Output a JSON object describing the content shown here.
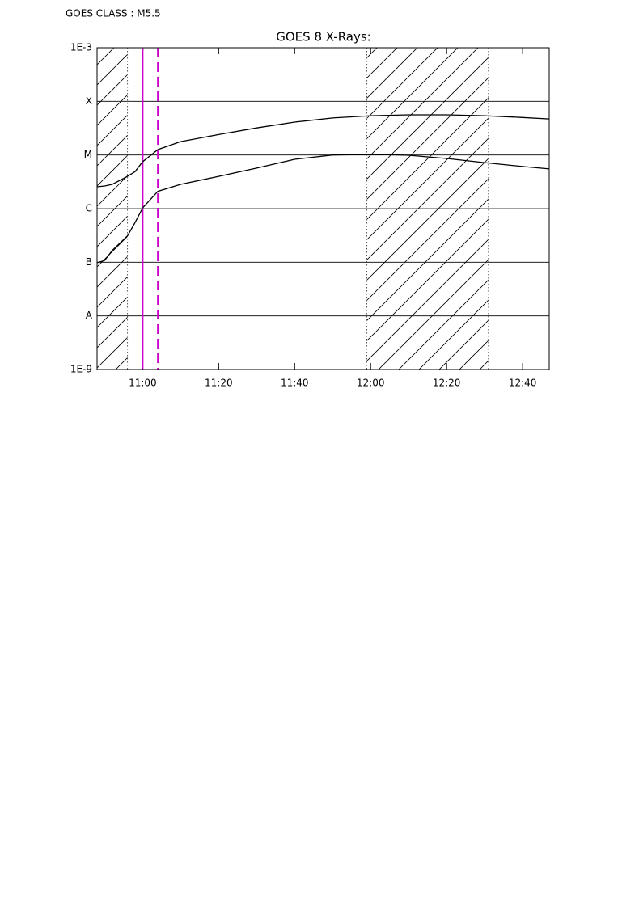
{
  "chart_data": {
    "type": "line",
    "header": "GOES CLASS : M5.5",
    "title": "GOES 8 X-Rays:",
    "x": [
      "10:48",
      "10:50",
      "10:52",
      "10:56",
      "10:58",
      "11:00",
      "11:04",
      "11:10",
      "11:20",
      "11:30",
      "11:40",
      "11:50",
      "12:00",
      "12:10",
      "12:20",
      "12:30",
      "12:40",
      "12:47"
    ],
    "series": [
      {
        "color": "#000000",
        "values": [
          2.55e-06,
          2.64e-06,
          2.83e-06,
          4e-06,
          4.9e-06,
          7.5e-06,
          1.26e-05,
          1.78e-05,
          2.4e-05,
          3.2e-05,
          4.1e-05,
          4.9e-05,
          5.4e-05,
          5.6e-05,
          5.6e-05,
          5.4e-05,
          5e-05,
          4.7e-05
        ]
      },
      {
        "color": "#000000",
        "values": [
          9.8e-08,
          1.08e-07,
          1.66e-07,
          3.1e-07,
          5.5e-07,
          1.03e-06,
          2.1e-06,
          2.83e-06,
          4e-06,
          5.7e-06,
          8.3e-06,
          1e-05,
          1.03e-05,
          9.9e-06,
          8.6e-06,
          7.2e-06,
          6.1e-06,
          5.5e-06
        ]
      }
    ],
    "xlim": [
      "10:48",
      "12:47"
    ],
    "xticks": [
      "11:00",
      "11:20",
      "11:40",
      "12:00",
      "12:20",
      "12:40"
    ],
    "ylim": [
      1e-09,
      0.001
    ],
    "log_y": true,
    "yticks": [
      {
        "value": 1e-09,
        "label": "1E-9"
      },
      {
        "value": 1e-08,
        "label": "A"
      },
      {
        "value": 1e-07,
        "label": "B"
      },
      {
        "value": 1e-06,
        "label": "C"
      },
      {
        "value": 1e-05,
        "label": "M"
      },
      {
        "value": 0.0001,
        "label": "X"
      },
      {
        "value": 0.001,
        "label": "1E-3"
      }
    ],
    "grid": true,
    "shaded": [
      [
        "10:48",
        "10:56"
      ],
      [
        "11:59",
        "12:31"
      ]
    ],
    "markers": [
      {
        "x": "11:00",
        "style": "solid",
        "color": "#cc00cc"
      },
      {
        "x": "11:04",
        "style": "dashed",
        "color": "#cc00cc"
      }
    ]
  }
}
